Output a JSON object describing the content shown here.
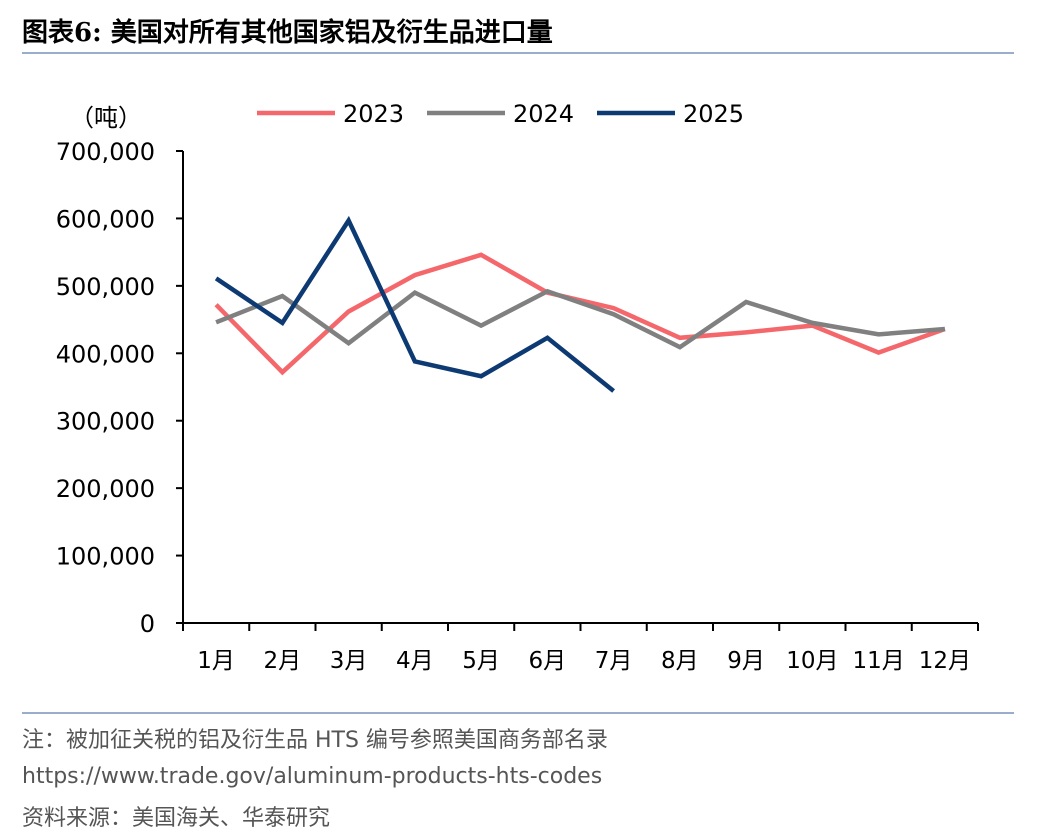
{
  "figure": {
    "title": "图表6:   美国对所有其他国家铝及衍生品进口量",
    "unit": "（吨）",
    "note": "注：被加征关税的铝及衍生品 HTS 编号参照美国商务部名录",
    "url": "https://www.trade.gov/aluminum-products-hts-codes",
    "source": "资料来源：美国海关、华泰研究"
  },
  "chart_data": {
    "type": "line",
    "categories": [
      "1月",
      "2月",
      "3月",
      "4月",
      "5月",
      "6月",
      "7月",
      "8月",
      "9月",
      "10月",
      "11月",
      "12月"
    ],
    "ylim": [
      0,
      700000
    ],
    "yticks": [
      0,
      100000,
      200000,
      300000,
      400000,
      500000,
      600000,
      700000
    ],
    "ytick_labels": [
      "0",
      "100,000",
      "200,000",
      "300,000",
      "400,000",
      "500,000",
      "600,000",
      "700,000"
    ],
    "legend_position": "top",
    "grid": false,
    "series": [
      {
        "name": "2023",
        "color": "#f4676b",
        "values": [
          472000,
          372000,
          462000,
          516000,
          546000,
          490000,
          467000,
          423000,
          431000,
          441000,
          401000,
          436000
        ]
      },
      {
        "name": "2024",
        "color": "#808080",
        "values": [
          446000,
          485000,
          415000,
          490000,
          441000,
          492000,
          458000,
          409000,
          476000,
          445000,
          428000,
          436000
        ]
      },
      {
        "name": "2025",
        "color": "#0d3a73",
        "values": [
          511000,
          445000,
          597000,
          388000,
          366000,
          423000,
          344000,
          null,
          null,
          null,
          null,
          null
        ]
      }
    ]
  }
}
